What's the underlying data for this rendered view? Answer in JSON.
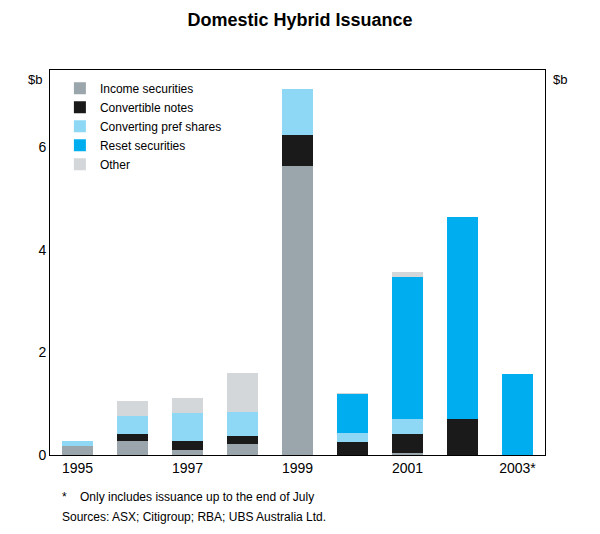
{
  "chart_data": {
    "type": "bar",
    "title": "Domestic Hybrid Issuance",
    "ylabel": "$b",
    "y2label": "$b",
    "categories": [
      "1995",
      null,
      "1997",
      null,
      "1999",
      null,
      "2001",
      null,
      "2003*"
    ],
    "series": [
      {
        "name": "Income securities",
        "color": "#9ba6ac",
        "values": [
          0.18,
          0.28,
          0.1,
          0.22,
          5.63,
          0,
          0.03,
          0,
          0
        ]
      },
      {
        "name": "Convertible notes",
        "color": "#1a1a1a",
        "values": [
          0,
          0.13,
          0.17,
          0.15,
          0.6,
          0.25,
          0.38,
          0.7,
          0
        ]
      },
      {
        "name": "Converting pref shares",
        "color": "#8ed8f6",
        "values": [
          0.1,
          0.35,
          0.55,
          0.47,
          0.9,
          0.18,
          0.3,
          0,
          0
        ]
      },
      {
        "name": "Reset securities",
        "color": "#00aeef",
        "values": [
          0,
          0,
          0,
          0,
          0,
          0.75,
          2.75,
          3.93,
          1.57
        ]
      },
      {
        "name": "Other",
        "color": "#d3d7d9",
        "values": [
          0,
          0.3,
          0.3,
          0.76,
          0,
          0.02,
          0.1,
          0,
          0
        ]
      }
    ],
    "stacked": true,
    "ylim": [
      0,
      7.5
    ],
    "yticks": [
      0,
      2,
      4,
      6
    ],
    "y2lim": [
      0,
      7.5
    ],
    "y2ticks": [
      0,
      2,
      4,
      6
    ],
    "grid": false,
    "legend": "upper left",
    "notes": [
      "*    Only includes issuance up to the end of July",
      "Sources: ASX; Citigroup; RBA; UBS Australia Ltd."
    ]
  }
}
